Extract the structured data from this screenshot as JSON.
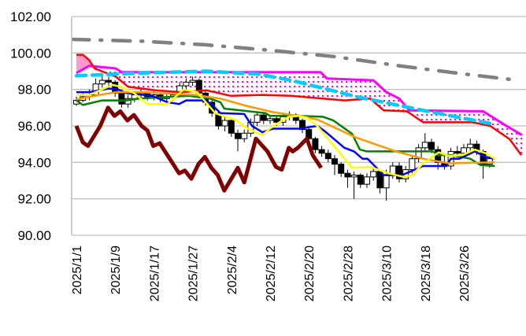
{
  "chart_data": {
    "type": "candlestick",
    "title": "",
    "xlabel": "",
    "ylabel": "",
    "ylim": [
      90,
      102
    ],
    "yticks": [
      "90.00",
      "92.00",
      "94.00",
      "96.00",
      "98.00",
      "100.00",
      "102.00"
    ],
    "grid": true,
    "x_tick_labels": [
      {
        "index": 0,
        "label": "2025/1/1"
      },
      {
        "index": 6,
        "label": "2025/1/9"
      },
      {
        "index": 12,
        "label": "2025/1/17"
      },
      {
        "index": 18,
        "label": "2025/1/27"
      },
      {
        "index": 24,
        "label": "2025/2/4"
      },
      {
        "index": 30,
        "label": "2025/2/12"
      },
      {
        "index": 36,
        "label": "2025/2/20"
      },
      {
        "index": 42,
        "label": "2025/2/28"
      },
      {
        "index": 48,
        "label": "2025/3/10"
      },
      {
        "index": 54,
        "label": "2025/3/18"
      },
      {
        "index": 60,
        "label": "2025/3/26"
      }
    ],
    "x_range": [
      0,
      69
    ],
    "candles_ohlc": [
      [
        97.2,
        97.6,
        97.1,
        97.4
      ],
      [
        97.4,
        97.8,
        97.3,
        97.6
      ],
      [
        97.6,
        98.0,
        97.4,
        97.7
      ],
      [
        97.7,
        98.6,
        97.6,
        98.3
      ],
      [
        98.3,
        98.8,
        98.1,
        98.5
      ],
      [
        98.5,
        98.7,
        98.2,
        98.4
      ],
      [
        98.4,
        98.5,
        97.6,
        97.8
      ],
      [
        97.8,
        98.0,
        97.0,
        97.2
      ],
      [
        97.2,
        97.7,
        97.0,
        97.5
      ],
      [
        97.5,
        97.9,
        97.3,
        97.7
      ],
      [
        97.7,
        98.0,
        97.5,
        97.8
      ],
      [
        97.8,
        97.9,
        97.4,
        97.6
      ],
      [
        97.6,
        97.9,
        97.4,
        97.7
      ],
      [
        97.7,
        97.8,
        97.3,
        97.5
      ],
      [
        97.5,
        97.8,
        97.3,
        97.6
      ],
      [
        97.6,
        97.9,
        97.4,
        97.7
      ],
      [
        97.7,
        98.4,
        97.6,
        98.2
      ],
      [
        98.2,
        98.6,
        98.0,
        98.4
      ],
      [
        98.4,
        98.7,
        98.2,
        98.5
      ],
      [
        98.5,
        98.6,
        97.6,
        97.8
      ],
      [
        97.8,
        97.9,
        97.1,
        97.3
      ],
      [
        97.3,
        97.4,
        96.5,
        96.7
      ],
      [
        96.7,
        96.8,
        95.8,
        96.0
      ],
      [
        96.0,
        96.5,
        95.7,
        96.3
      ],
      [
        96.3,
        96.4,
        95.4,
        95.6
      ],
      [
        95.6,
        95.8,
        94.6,
        95.3
      ],
      [
        95.3,
        95.8,
        95.1,
        95.6
      ],
      [
        95.6,
        96.4,
        95.4,
        96.2
      ],
      [
        96.2,
        96.8,
        96.0,
        96.6
      ],
      [
        96.6,
        96.7,
        96.1,
        96.3
      ],
      [
        96.3,
        96.6,
        96.1,
        96.4
      ],
      [
        96.4,
        96.5,
        96.0,
        96.2
      ],
      [
        96.2,
        96.7,
        96.0,
        96.5
      ],
      [
        96.5,
        96.8,
        96.3,
        96.6
      ],
      [
        96.6,
        96.7,
        96.1,
        96.3
      ],
      [
        96.3,
        96.4,
        95.6,
        95.8
      ],
      [
        95.8,
        95.9,
        95.1,
        95.3
      ],
      [
        95.3,
        95.4,
        94.5,
        94.7
      ],
      [
        94.7,
        94.9,
        94.3,
        94.5
      ],
      [
        94.5,
        94.7,
        94.0,
        94.2
      ],
      [
        94.2,
        94.4,
        93.3,
        93.9
      ],
      [
        93.9,
        94.0,
        93.2,
        93.4
      ],
      [
        93.4,
        93.6,
        92.6,
        93.2
      ],
      [
        93.2,
        93.5,
        92.0,
        93.3
      ],
      [
        93.3,
        93.4,
        92.6,
        92.8
      ],
      [
        92.8,
        93.4,
        92.6,
        93.2
      ],
      [
        93.2,
        93.7,
        93.0,
        93.5
      ],
      [
        93.5,
        93.6,
        92.3,
        92.6
      ],
      [
        92.6,
        93.6,
        91.9,
        93.3
      ],
      [
        93.3,
        94.0,
        93.1,
        93.8
      ],
      [
        93.8,
        94.0,
        92.9,
        93.1
      ],
      [
        93.1,
        93.8,
        92.9,
        93.6
      ],
      [
        93.6,
        94.4,
        93.4,
        94.2
      ],
      [
        94.2,
        95.0,
        94.0,
        94.8
      ],
      [
        94.8,
        95.6,
        94.6,
        95.1
      ],
      [
        95.1,
        95.3,
        94.5,
        94.7
      ],
      [
        94.7,
        94.9,
        93.6,
        94.0
      ],
      [
        94.0,
        94.4,
        93.6,
        93.8
      ],
      [
        93.8,
        94.8,
        93.6,
        94.6
      ],
      [
        94.6,
        94.9,
        94.3,
        94.5
      ],
      [
        94.5,
        95.0,
        94.3,
        94.8
      ],
      [
        94.8,
        95.3,
        94.6,
        95.0
      ],
      [
        95.0,
        95.2,
        94.4,
        94.6
      ],
      [
        94.6,
        94.7,
        93.1,
        93.9
      ],
      [
        93.9,
        94.3,
        93.7,
        94.2
      ]
    ],
    "series": [
      {
        "name": "senkou-span-b",
        "color": "#ff00ff",
        "width": 3,
        "dash": "",
        "points": [
          [
            0,
            98.9
          ],
          [
            2,
            99.3
          ],
          [
            6.1,
            99.15
          ],
          [
            7,
            98.95
          ],
          [
            37.8,
            98.95
          ],
          [
            38.8,
            98.6
          ],
          [
            46,
            98.5
          ],
          [
            48,
            97.85
          ],
          [
            50,
            97.5
          ],
          [
            51.6,
            96.85
          ],
          [
            63,
            96.8
          ],
          [
            66.6,
            96.0
          ],
          [
            69,
            95.5
          ]
        ]
      },
      {
        "name": "senkou-span-a",
        "color": "#ff0000",
        "width": 2.5,
        "dash": "",
        "points": [
          [
            0,
            99.9
          ],
          [
            1,
            99.9
          ],
          [
            2,
            99.6
          ],
          [
            2.8,
            99.15
          ],
          [
            6.1,
            98.7
          ],
          [
            8,
            98.15
          ],
          [
            12.2,
            97.95
          ],
          [
            16.2,
            97.85
          ],
          [
            20.2,
            97.95
          ],
          [
            23.9,
            97.65
          ],
          [
            28.8,
            97.7
          ],
          [
            33.3,
            97.65
          ],
          [
            41.5,
            97.4
          ],
          [
            45.5,
            97.5
          ],
          [
            47.6,
            96.85
          ],
          [
            51.2,
            96.8
          ],
          [
            53.7,
            96.2
          ],
          [
            61.3,
            96.2
          ],
          [
            64.1,
            96.0
          ],
          [
            67.1,
            95.27
          ],
          [
            68.9,
            94.4
          ]
        ]
      },
      {
        "name": "trend-dashed-lightblue",
        "color": "#00ccff",
        "width": 4.5,
        "dash": "12 8",
        "points": [
          [
            0,
            98.75
          ],
          [
            10,
            98.9
          ],
          [
            20,
            99.0
          ],
          [
            28,
            98.85
          ],
          [
            33.3,
            98.5
          ],
          [
            43.4,
            97.6
          ],
          [
            53.7,
            96.85
          ],
          [
            64.6,
            96.1
          ]
        ]
      },
      {
        "name": "trend-dashdot-gray",
        "color": "#808080",
        "width": 4.5,
        "dash": "22 14 2 14",
        "points": [
          [
            -0.7,
            100.75
          ],
          [
            10,
            100.65
          ],
          [
            20,
            100.45
          ],
          [
            30,
            100.15
          ],
          [
            40,
            99.8
          ],
          [
            50,
            99.3
          ],
          [
            60,
            98.85
          ],
          [
            68.5,
            98.5
          ]
        ]
      },
      {
        "name": "chikou-span",
        "color": "#800000",
        "width": 5,
        "dash": "",
        "points": [
          [
            0,
            96.0
          ],
          [
            1,
            95.1
          ],
          [
            1.8,
            94.9
          ],
          [
            3.7,
            96.0
          ],
          [
            4.9,
            97.0
          ],
          [
            5.9,
            96.55
          ],
          [
            6.8,
            96.8
          ],
          [
            7.9,
            96.3
          ],
          [
            8.9,
            96.6
          ],
          [
            10.1,
            96.0
          ],
          [
            11,
            95.75
          ],
          [
            11.9,
            94.9
          ],
          [
            12.9,
            95.05
          ],
          [
            15.9,
            93.4
          ],
          [
            16.8,
            93.55
          ],
          [
            17.8,
            93.1
          ],
          [
            18.9,
            93.9
          ],
          [
            19.9,
            94.3
          ],
          [
            20.9,
            93.7
          ],
          [
            21.9,
            93.3
          ],
          [
            22.9,
            92.45
          ],
          [
            25,
            93.7
          ],
          [
            26,
            92.9
          ],
          [
            27.8,
            95.3
          ],
          [
            29.6,
            94.6
          ],
          [
            30.9,
            93.75
          ],
          [
            31.8,
            93.6
          ],
          [
            32.9,
            94.8
          ],
          [
            33.5,
            94.6
          ],
          [
            34.3,
            94.8
          ],
          [
            35.7,
            95.3
          ],
          [
            36.6,
            94.4
          ],
          [
            37.9,
            93.7
          ]
        ]
      },
      {
        "name": "kijun-sen",
        "color": "#008000",
        "width": 2.5,
        "dash": "",
        "points": [
          [
            0,
            97.4
          ],
          [
            1,
            97.15
          ],
          [
            4,
            97.4
          ],
          [
            7.7,
            97.4
          ],
          [
            9.7,
            97.5
          ],
          [
            17.4,
            97.65
          ],
          [
            20.7,
            97.5
          ],
          [
            22.3,
            97.3
          ],
          [
            22.9,
            96.95
          ],
          [
            29.3,
            96.7
          ],
          [
            30,
            96.55
          ],
          [
            34.5,
            96.55
          ],
          [
            38.2,
            96.5
          ],
          [
            39.8,
            96.3
          ],
          [
            42.7,
            95.57
          ],
          [
            43.9,
            94.7
          ],
          [
            45,
            94.6
          ],
          [
            55.2,
            94.6
          ],
          [
            56,
            94.4
          ],
          [
            58,
            94.4
          ],
          [
            61,
            94.2
          ],
          [
            62.6,
            93.85
          ],
          [
            64.8,
            93.8
          ]
        ]
      },
      {
        "name": "tenkan-sen",
        "color": "#0000ff",
        "width": 2.5,
        "dash": "",
        "points": [
          [
            0,
            97.85
          ],
          [
            2,
            97.85
          ],
          [
            5,
            98.05
          ],
          [
            6.5,
            98.0
          ],
          [
            7.7,
            97.8
          ],
          [
            11.7,
            97.65
          ],
          [
            14.1,
            97.3
          ],
          [
            15.9,
            97.2
          ],
          [
            17,
            97.4
          ],
          [
            19.9,
            97.4
          ],
          [
            20.9,
            97.2
          ],
          [
            22.3,
            96.7
          ],
          [
            26,
            96.65
          ],
          [
            27.2,
            96.0
          ],
          [
            28.8,
            95.65
          ],
          [
            30.5,
            95.85
          ],
          [
            34.5,
            95.85
          ],
          [
            37.3,
            96.0
          ],
          [
            38.5,
            95.7
          ],
          [
            41.5,
            94.8
          ],
          [
            43,
            94.6
          ],
          [
            44.3,
            94.2
          ],
          [
            45.1,
            94.2
          ],
          [
            47.6,
            93.3
          ],
          [
            50.4,
            93.3
          ],
          [
            53.7,
            93.8
          ],
          [
            57.3,
            93.8
          ],
          [
            58,
            94.2
          ],
          [
            59.3,
            94.2
          ],
          [
            61.7,
            94.6
          ],
          [
            63.4,
            94.3
          ],
          [
            64.8,
            94.2
          ]
        ]
      },
      {
        "name": "moving-average-long",
        "color": "#ff9900",
        "width": 2.5,
        "dash": "",
        "points": [
          [
            0,
            97.45
          ],
          [
            2.8,
            97.65
          ],
          [
            6.1,
            97.85
          ],
          [
            10.1,
            97.85
          ],
          [
            18.3,
            97.7
          ],
          [
            22.3,
            97.5
          ],
          [
            26.3,
            97.1
          ],
          [
            30.5,
            96.75
          ],
          [
            34.5,
            96.55
          ],
          [
            37.3,
            96.35
          ],
          [
            43.4,
            95.35
          ],
          [
            49.5,
            94.6
          ],
          [
            53.7,
            94.2
          ],
          [
            57.7,
            93.95
          ],
          [
            64.8,
            94.0
          ]
        ]
      },
      {
        "name": "moving-average-short",
        "color": "#ffff00",
        "width": 2.5,
        "dash": "",
        "points": [
          [
            0,
            97.7
          ],
          [
            2,
            97.7
          ],
          [
            5.6,
            98.25
          ],
          [
            6.8,
            98.15
          ],
          [
            8.9,
            97.8
          ],
          [
            11,
            97.2
          ],
          [
            14.1,
            97.2
          ],
          [
            16.6,
            98.0
          ],
          [
            18.7,
            97.85
          ],
          [
            21.5,
            96.7
          ],
          [
            24.8,
            96.3
          ],
          [
            26.3,
            95.9
          ],
          [
            28.8,
            95.5
          ],
          [
            30.5,
            96.0
          ],
          [
            32.9,
            96.5
          ],
          [
            34.5,
            96.55
          ],
          [
            35.7,
            96.45
          ],
          [
            37.3,
            96.0
          ],
          [
            40.6,
            94.6
          ],
          [
            42.7,
            93.7
          ],
          [
            45.5,
            93.75
          ],
          [
            48.3,
            93.4
          ],
          [
            50.7,
            93.2
          ],
          [
            52,
            93.3
          ],
          [
            53.7,
            93.95
          ],
          [
            56.1,
            94.55
          ],
          [
            57.7,
            94.35
          ],
          [
            59.8,
            94.4
          ],
          [
            61.7,
            94.7
          ],
          [
            63.4,
            94.5
          ],
          [
            64.8,
            94.2
          ]
        ]
      }
    ],
    "cloud": {
      "bullish_fill": "#ff99cc",
      "bearish_pattern_color": "#ff00ff"
    }
  }
}
